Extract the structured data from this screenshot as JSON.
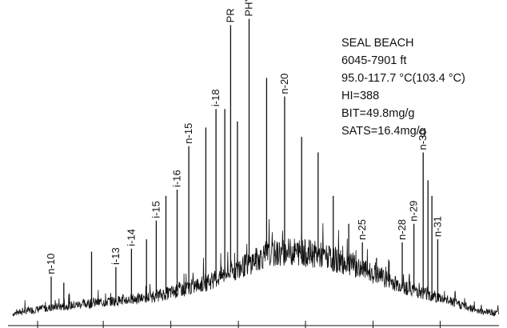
{
  "chart_data": {
    "type": "line",
    "title": "",
    "xlabel": "",
    "ylabel": "",
    "xlim": [
      0,
      100
    ],
    "ylim": [
      0,
      100
    ],
    "grid": false,
    "annotations": [
      "SEAL BEACH",
      "6045-7901 ft",
      "95.0-117.7 °C(103.4 °C)",
      "HI=388",
      "BIT=49.8mg/g",
      "SATS=16.4mg/g"
    ],
    "baseline": {
      "x": [
        0,
        3,
        8,
        14,
        20,
        27,
        33,
        40,
        47,
        52,
        58,
        63,
        69,
        74,
        80,
        86,
        92,
        96,
        100
      ],
      "y": [
        2,
        3,
        4,
        5,
        6,
        7,
        9,
        12,
        17,
        21,
        22,
        21,
        18,
        15,
        11,
        8,
        5,
        3,
        2
      ]
    },
    "peaks": [
      {
        "x": 7.9,
        "y": 14,
        "label": "n-10"
      },
      {
        "x": 10.5,
        "y": 12,
        "label": ""
      },
      {
        "x": 16.2,
        "y": 22,
        "label": ""
      },
      {
        "x": 21.2,
        "y": 17,
        "label": "i-13"
      },
      {
        "x": 24.4,
        "y": 23,
        "label": "i-14"
      },
      {
        "x": 27.5,
        "y": 26,
        "label": ""
      },
      {
        "x": 29.5,
        "y": 32,
        "label": "i-15"
      },
      {
        "x": 31.5,
        "y": 40,
        "label": ""
      },
      {
        "x": 33.8,
        "y": 42,
        "label": "i-16"
      },
      {
        "x": 36.2,
        "y": 56,
        "label": "n-15"
      },
      {
        "x": 39.7,
        "y": 62,
        "label": ""
      },
      {
        "x": 41.8,
        "y": 68,
        "label": "i-18"
      },
      {
        "x": 43.6,
        "y": 68,
        "label": ""
      },
      {
        "x": 44.8,
        "y": 95,
        "label": "PR"
      },
      {
        "x": 46.2,
        "y": 64,
        "label": ""
      },
      {
        "x": 48.6,
        "y": 97,
        "label": "PHY"
      },
      {
        "x": 52.2,
        "y": 78,
        "label": ""
      },
      {
        "x": 55.9,
        "y": 72,
        "label": "n-20"
      },
      {
        "x": 59.4,
        "y": 59,
        "label": ""
      },
      {
        "x": 62.8,
        "y": 54,
        "label": ""
      },
      {
        "x": 65.9,
        "y": 40,
        "label": ""
      },
      {
        "x": 69.1,
        "y": 31,
        "label": ""
      },
      {
        "x": 71.9,
        "y": 25,
        "label": "n-25"
      },
      {
        "x": 74.8,
        "y": 20,
        "label": ""
      },
      {
        "x": 77.4,
        "y": 19,
        "label": ""
      },
      {
        "x": 80.1,
        "y": 25,
        "label": "n-28"
      },
      {
        "x": 82.5,
        "y": 31,
        "label": "n-29"
      },
      {
        "x": 84.4,
        "y": 54,
        "label": "n-30"
      },
      {
        "x": 85.4,
        "y": 45,
        "label": ""
      },
      {
        "x": 86.2,
        "y": 40,
        "label": ""
      },
      {
        "x": 87.4,
        "y": 26,
        "label": "n-31"
      }
    ],
    "x_ticks": [
      5.1,
      18.6,
      32.5,
      46.4,
      60.2,
      74.1,
      87.9
    ]
  }
}
